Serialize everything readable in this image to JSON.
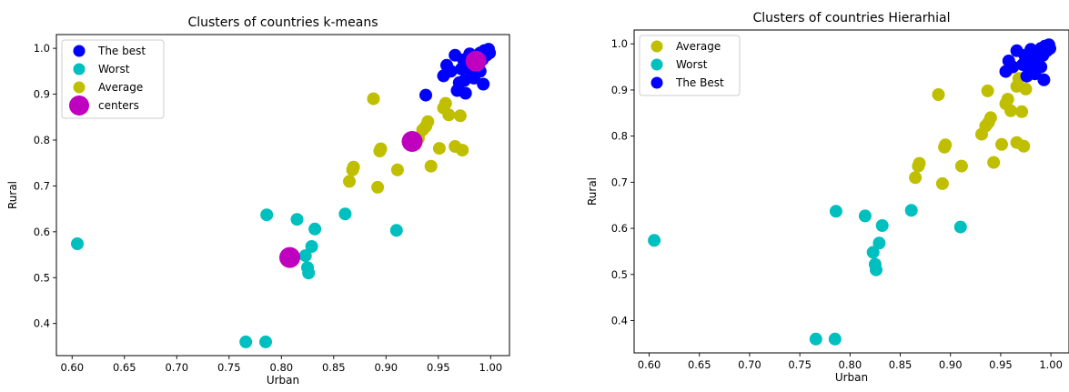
{
  "chart_data": [
    {
      "type": "scatter",
      "title": "Clusters of countries k-means",
      "xlabel": "Urban",
      "ylabel": "Rural",
      "xlim": [
        0.585,
        1.018
      ],
      "ylim": [
        0.33,
        1.03
      ],
      "x_ticks": [
        "0.60",
        "0.65",
        "0.70",
        "0.75",
        "0.80",
        "0.85",
        "0.90",
        "0.95",
        "1.00"
      ],
      "y_ticks": [
        "0.4",
        "0.5",
        "0.6",
        "0.7",
        "0.8",
        "0.9",
        "1.0"
      ],
      "grid": false,
      "legend_position": "upper-left",
      "series": [
        {
          "name": "The best",
          "color": "#0000ff",
          "points": [
            [
              0.938,
              0.898
            ],
            [
              0.955,
              0.94
            ],
            [
              0.958,
              0.963
            ],
            [
              0.962,
              0.95
            ],
            [
              0.966,
              0.985
            ],
            [
              0.968,
              0.908
            ],
            [
              0.97,
              0.925
            ],
            [
              0.972,
              0.955
            ],
            [
              0.974,
              0.975
            ],
            [
              0.975,
              0.93
            ],
            [
              0.976,
              0.902
            ],
            [
              0.978,
              0.965
            ],
            [
              0.98,
              0.988
            ],
            [
              0.982,
              0.945
            ],
            [
              0.984,
              0.935
            ],
            [
              0.985,
              0.972
            ],
            [
              0.986,
              0.96
            ],
            [
              0.988,
              0.98
            ],
            [
              0.99,
              0.95
            ],
            [
              0.99,
              0.99
            ],
            [
              0.992,
              0.975
            ],
            [
              0.993,
              0.922
            ],
            [
              0.994,
              0.995
            ],
            [
              0.996,
              0.985
            ],
            [
              0.998,
              0.998
            ],
            [
              0.999,
              0.99
            ]
          ]
        },
        {
          "name": "Worst",
          "color": "#00bfbf",
          "points": [
            [
              0.605,
              0.574
            ],
            [
              0.766,
              0.36
            ],
            [
              0.785,
              0.36
            ],
            [
              0.786,
              0.637
            ],
            [
              0.815,
              0.627
            ],
            [
              0.823,
              0.548
            ],
            [
              0.825,
              0.522
            ],
            [
              0.826,
              0.51
            ],
            [
              0.829,
              0.568
            ],
            [
              0.832,
              0.606
            ],
            [
              0.861,
              0.639
            ],
            [
              0.91,
              0.603
            ]
          ]
        },
        {
          "name": "Average",
          "color": "#bfbf00",
          "points": [
            [
              0.865,
              0.71
            ],
            [
              0.868,
              0.735
            ],
            [
              0.869,
              0.741
            ],
            [
              0.888,
              0.89
            ],
            [
              0.892,
              0.697
            ],
            [
              0.894,
              0.776
            ],
            [
              0.895,
              0.781
            ],
            [
              0.911,
              0.735
            ],
            [
              0.931,
              0.804
            ],
            [
              0.935,
              0.822
            ],
            [
              0.938,
              0.83
            ],
            [
              0.94,
              0.84
            ],
            [
              0.943,
              0.743
            ],
            [
              0.951,
              0.782
            ],
            [
              0.955,
              0.87
            ],
            [
              0.957,
              0.88
            ],
            [
              0.96,
              0.855
            ],
            [
              0.966,
              0.786
            ],
            [
              0.971,
              0.853
            ],
            [
              0.973,
              0.778
            ]
          ]
        },
        {
          "name": "centers",
          "color": "#bf00bf",
          "points": [
            [
              0.986,
              0.972
            ],
            [
              0.925,
              0.797
            ],
            [
              0.808,
              0.544
            ]
          ]
        }
      ]
    },
    {
      "type": "scatter",
      "title": "Clusters of countries Hierarhial",
      "xlabel": "Urban",
      "ylabel": "Rural",
      "xlim": [
        0.585,
        1.018
      ],
      "ylim": [
        0.33,
        1.03
      ],
      "x_ticks": [
        "0.60",
        "0.65",
        "0.70",
        "0.75",
        "0.80",
        "0.85",
        "0.90",
        "0.95",
        "1.00"
      ],
      "y_ticks": [
        "0.4",
        "0.5",
        "0.6",
        "0.7",
        "0.8",
        "0.9",
        "1.0"
      ],
      "grid": false,
      "legend_position": "upper-left",
      "series": [
        {
          "name": "Average",
          "color": "#bfbf00",
          "points": [
            [
              0.865,
              0.71
            ],
            [
              0.868,
              0.735
            ],
            [
              0.869,
              0.741
            ],
            [
              0.888,
              0.89
            ],
            [
              0.892,
              0.697
            ],
            [
              0.894,
              0.776
            ],
            [
              0.895,
              0.781
            ],
            [
              0.911,
              0.735
            ],
            [
              0.931,
              0.804
            ],
            [
              0.935,
              0.822
            ],
            [
              0.937,
              0.898
            ],
            [
              0.938,
              0.83
            ],
            [
              0.94,
              0.84
            ],
            [
              0.943,
              0.743
            ],
            [
              0.951,
              0.782
            ],
            [
              0.955,
              0.87
            ],
            [
              0.957,
              0.88
            ],
            [
              0.96,
              0.855
            ],
            [
              0.966,
              0.786
            ],
            [
              0.966,
              0.908
            ],
            [
              0.968,
              0.925
            ],
            [
              0.971,
              0.853
            ],
            [
              0.973,
              0.778
            ],
            [
              0.975,
              0.902
            ]
          ]
        },
        {
          "name": "Worst",
          "color": "#00bfbf",
          "points": [
            [
              0.605,
              0.574
            ],
            [
              0.766,
              0.36
            ],
            [
              0.785,
              0.36
            ],
            [
              0.786,
              0.637
            ],
            [
              0.815,
              0.627
            ],
            [
              0.823,
              0.548
            ],
            [
              0.825,
              0.522
            ],
            [
              0.826,
              0.51
            ],
            [
              0.829,
              0.568
            ],
            [
              0.832,
              0.606
            ],
            [
              0.861,
              0.639
            ],
            [
              0.91,
              0.603
            ]
          ]
        },
        {
          "name": "The Best",
          "color": "#0000ff",
          "points": [
            [
              0.955,
              0.94
            ],
            [
              0.958,
              0.963
            ],
            [
              0.962,
              0.95
            ],
            [
              0.966,
              0.985
            ],
            [
              0.972,
              0.955
            ],
            [
              0.974,
              0.975
            ],
            [
              0.976,
              0.93
            ],
            [
              0.978,
              0.965
            ],
            [
              0.98,
              0.988
            ],
            [
              0.982,
              0.945
            ],
            [
              0.984,
              0.935
            ],
            [
              0.985,
              0.972
            ],
            [
              0.986,
              0.96
            ],
            [
              0.988,
              0.98
            ],
            [
              0.99,
              0.95
            ],
            [
              0.99,
              0.99
            ],
            [
              0.992,
              0.975
            ],
            [
              0.993,
              0.922
            ],
            [
              0.994,
              0.995
            ],
            [
              0.996,
              0.985
            ],
            [
              0.998,
              0.998
            ],
            [
              0.999,
              0.99
            ]
          ]
        }
      ]
    }
  ]
}
